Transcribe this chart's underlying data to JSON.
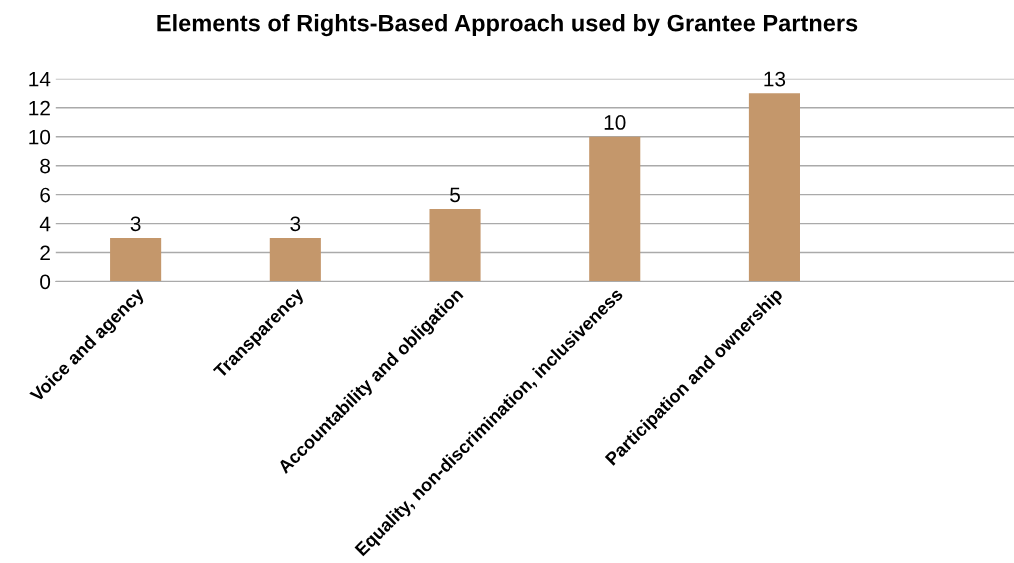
{
  "chart_data": {
    "type": "bar",
    "title": "Elements of Rights-Based Approach used by Grantee Partners",
    "categories": [
      "Voice and agency",
      "Transparency",
      "Accountability and obligation",
      "Equality, non-discrimination, inclusiveness",
      "Participation and ownership",
      null
    ],
    "values": [
      3,
      3,
      5,
      10,
      13,
      null
    ],
    "color": "#c4976b",
    "ylim": [
      0,
      14
    ],
    "yticks": [
      0,
      2,
      4,
      6,
      8,
      10,
      12,
      14
    ],
    "grid": "y",
    "data_labels": true
  }
}
